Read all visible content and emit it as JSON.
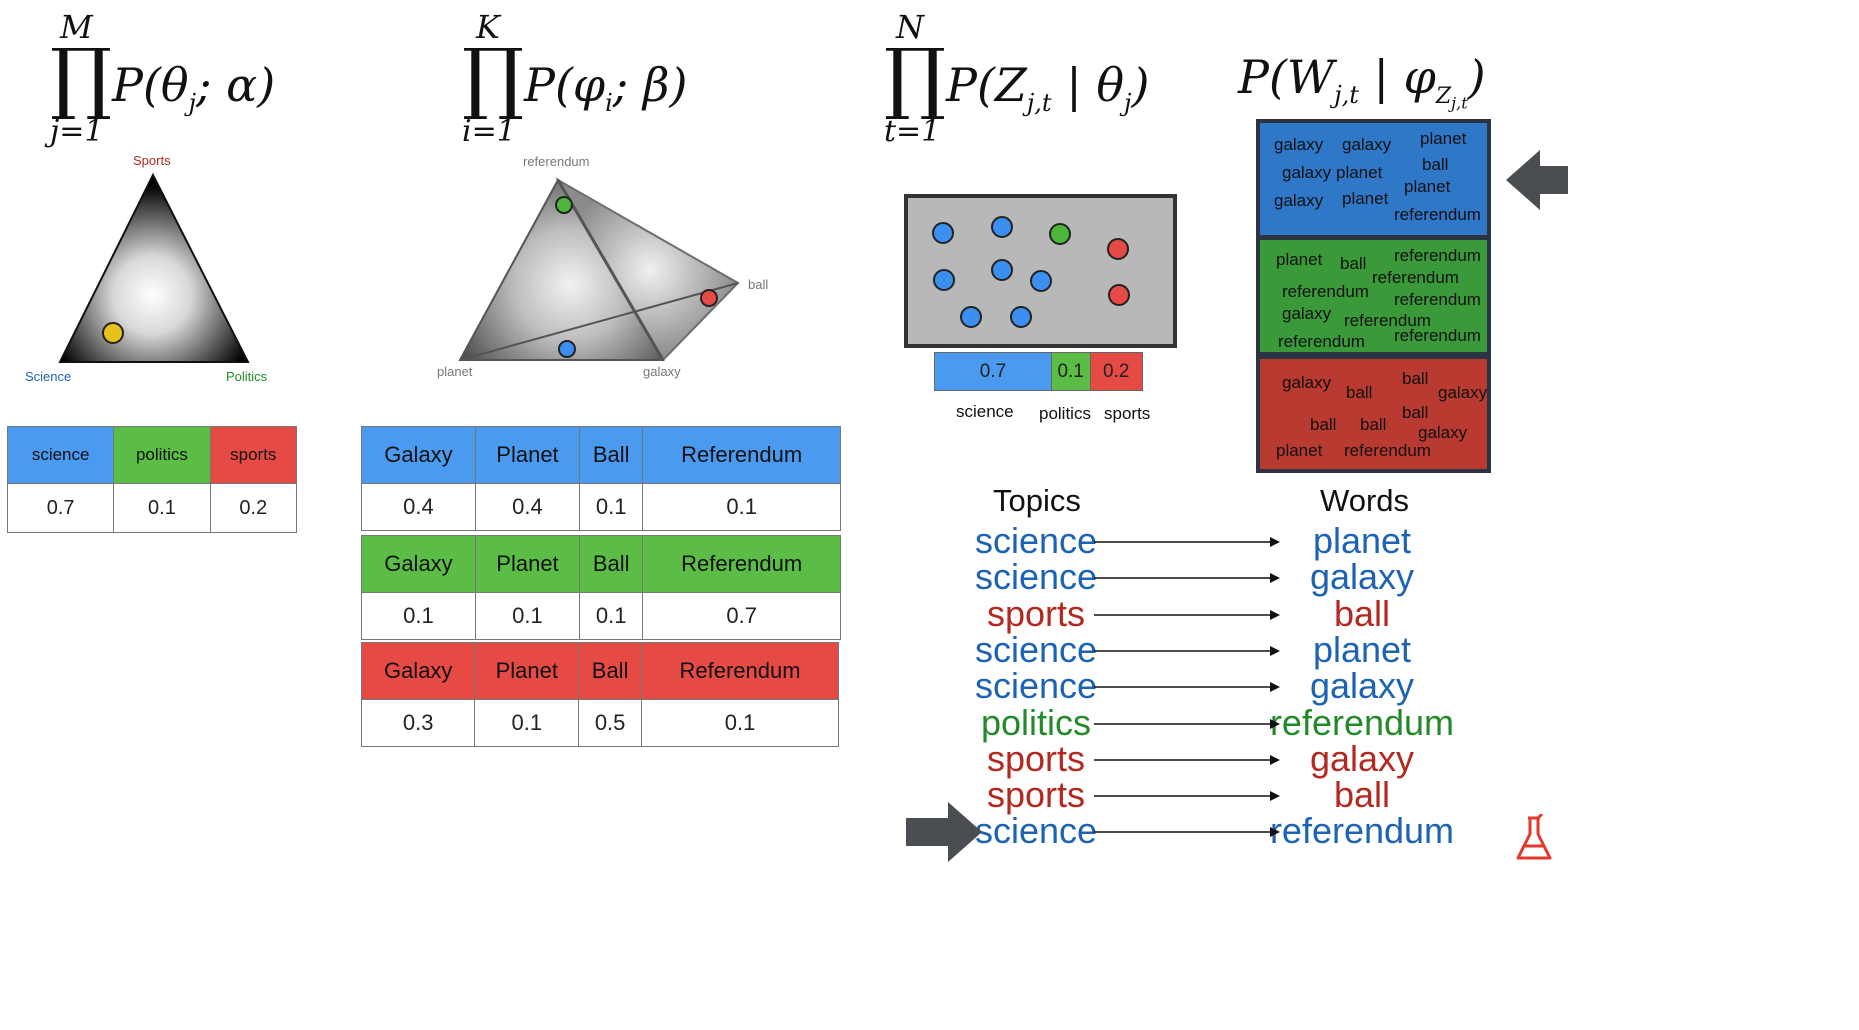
{
  "formulas": {
    "f1": {
      "upper": "M",
      "body": "P(θ_j; α)",
      "lower": "j=1"
    },
    "f2": {
      "upper": "K",
      "body": "P(φ_i; β)",
      "lower": "i=1"
    },
    "f3": {
      "upper": "N",
      "body": "P(Z_j,t | θ_j)",
      "lower": "t=1"
    },
    "f4": {
      "body": "P(W_j,t | φ_Z_j,t)"
    }
  },
  "triangle": {
    "top": "Sports",
    "left": "Science",
    "right": "Politics"
  },
  "tetra": {
    "top": "referendum",
    "right": "ball",
    "left": "planet",
    "bottom": "galaxy"
  },
  "topic_table": {
    "headers": [
      "science",
      "politics",
      "sports"
    ],
    "values": [
      "0.7",
      "0.1",
      "0.2"
    ]
  },
  "word_tables": [
    {
      "headers": [
        "Galaxy",
        "Planet",
        "Ball",
        "Referendum"
      ],
      "values": [
        "0.4",
        "0.4",
        "0.1",
        "0.1"
      ],
      "color": "#4a9af0"
    },
    {
      "headers": [
        "Galaxy",
        "Planet",
        "Ball",
        "Referendum"
      ],
      "values": [
        "0.1",
        "0.1",
        "0.1",
        "0.7"
      ],
      "color": "#5bbd45"
    },
    {
      "headers": [
        "Galaxy",
        "Planet",
        "Ball",
        "Referendum"
      ],
      "values": [
        "0.3",
        "0.1",
        "0.5",
        "0.1"
      ],
      "color": "#e54a45"
    }
  ],
  "doc_bar": {
    "values": [
      "0.7",
      "0.1",
      "0.2"
    ],
    "labels": [
      "science",
      "politics",
      "sports"
    ]
  },
  "blue_box_words": [
    "galaxy",
    "galaxy",
    "planet",
    "galaxy",
    "planet",
    "ball",
    "planet",
    "galaxy",
    "planet",
    "referendum"
  ],
  "green_box_words": [
    "planet",
    "ball",
    "referendum",
    "referendum",
    "referendum",
    "referendum",
    "galaxy",
    "referendum",
    "referendum",
    "referendum"
  ],
  "red_box_words": [
    "galaxy",
    "ball",
    "ball",
    "galaxy",
    "ball",
    "ball",
    "ball",
    "galaxy",
    "planet",
    "referendum"
  ],
  "headings": {
    "topics": "Topics",
    "words": "Words"
  },
  "pairs": [
    {
      "topic": "science",
      "word": "planet",
      "tc": "c-blue",
      "wc": "c-blue"
    },
    {
      "topic": "science",
      "word": "galaxy",
      "tc": "c-blue",
      "wc": "c-blue"
    },
    {
      "topic": "sports",
      "word": "ball",
      "tc": "c-red",
      "wc": "c-red"
    },
    {
      "topic": "science",
      "word": "planet",
      "tc": "c-blue",
      "wc": "c-blue"
    },
    {
      "topic": "science",
      "word": "galaxy",
      "tc": "c-blue",
      "wc": "c-blue"
    },
    {
      "topic": "politics",
      "word": "referendum",
      "tc": "c-green",
      "wc": "c-green"
    },
    {
      "topic": "sports",
      "word": "galaxy",
      "tc": "c-red",
      "wc": "c-red"
    },
    {
      "topic": "sports",
      "word": "ball",
      "tc": "c-red",
      "wc": "c-red"
    },
    {
      "topic": "science",
      "word": "referendum",
      "tc": "c-blue",
      "wc": "c-blue"
    }
  ]
}
